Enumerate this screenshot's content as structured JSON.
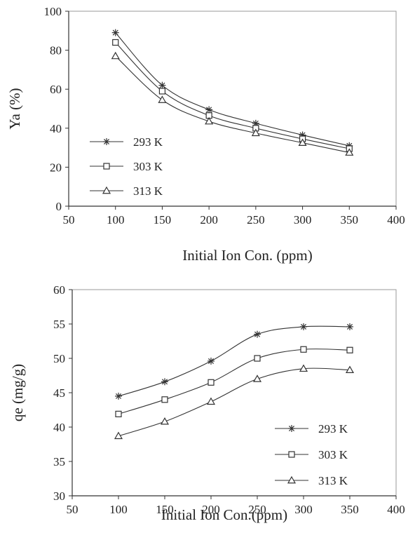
{
  "chart_data": [
    {
      "type": "line",
      "xlabel": "Initial  Ion Con. (ppm)",
      "ylabel": "Ya (%)",
      "xlim": [
        50,
        400
      ],
      "ylim": [
        0,
        100
      ],
      "xticks": [
        "50",
        "100",
        "150",
        "200",
        "250",
        "300",
        "350",
        "400"
      ],
      "yticks": [
        "0",
        "20",
        "40",
        "60",
        "80",
        "100"
      ],
      "grid": false,
      "legend_position": "bottom-left",
      "x": [
        100,
        150,
        200,
        250,
        300,
        350
      ],
      "series": [
        {
          "name": "293 K",
          "marker": "asterisk",
          "values": [
            89,
            62,
            49.5,
            42.5,
            36.5,
            31
          ]
        },
        {
          "name": "303 K",
          "marker": "square",
          "values": [
            84,
            59,
            46.5,
            40,
            34.5,
            29.5
          ]
        },
        {
          "name": "313 K",
          "marker": "triangle",
          "values": [
            77,
            54.5,
            43.5,
            37.5,
            32.5,
            27.5
          ]
        }
      ]
    },
    {
      "type": "line",
      "xlabel": "Initial Ion Con.(ppm)",
      "ylabel": "qe (mg/g)",
      "xlim": [
        50,
        400
      ],
      "ylim": [
        30,
        60
      ],
      "xticks": [
        "50",
        "100",
        "150",
        "200",
        "250",
        "300",
        "350",
        "400"
      ],
      "yticks": [
        "30",
        "35",
        "40",
        "45",
        "50",
        "55",
        "60"
      ],
      "grid": false,
      "legend_position": "bottom-right",
      "x": [
        100,
        150,
        200,
        250,
        300,
        350
      ],
      "series": [
        {
          "name": "293 K",
          "marker": "asterisk",
          "values": [
            44.5,
            46.6,
            49.6,
            53.5,
            54.6,
            54.6
          ]
        },
        {
          "name": "303 K",
          "marker": "square",
          "values": [
            41.9,
            44,
            46.5,
            50,
            51.3,
            51.2
          ]
        },
        {
          "name": "313 K",
          "marker": "triangle",
          "values": [
            38.7,
            40.8,
            43.7,
            47,
            48.5,
            48.3
          ]
        }
      ]
    }
  ]
}
